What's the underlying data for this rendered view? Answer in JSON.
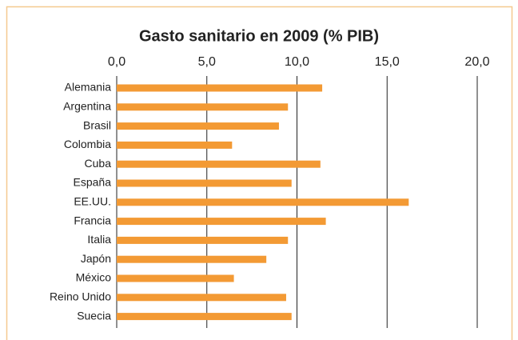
{
  "chart_data": {
    "type": "bar",
    "orientation": "horizontal",
    "title": "Gasto sanitario en 2009 (% PIB)",
    "categories": [
      "Alemania",
      "Argentina",
      "Brasil",
      "Colombia",
      "Cuba",
      "España",
      "EE.UU.",
      "Francia",
      "Italia",
      "Japón",
      "México",
      "Reino Unido",
      "Suecia"
    ],
    "values": [
      11.4,
      9.5,
      9.0,
      6.4,
      11.3,
      9.7,
      16.2,
      11.6,
      9.5,
      8.3,
      6.5,
      9.4,
      9.7
    ],
    "color": "#f39a34",
    "xlim": [
      0,
      20
    ],
    "xticks": [
      {
        "value": 0,
        "label": "0,0"
      },
      {
        "value": 5,
        "label": "5,0"
      },
      {
        "value": 10,
        "label": "10,0"
      },
      {
        "value": 15,
        "label": "15,0"
      },
      {
        "value": 20,
        "label": "20,0"
      }
    ],
    "grid": true
  }
}
